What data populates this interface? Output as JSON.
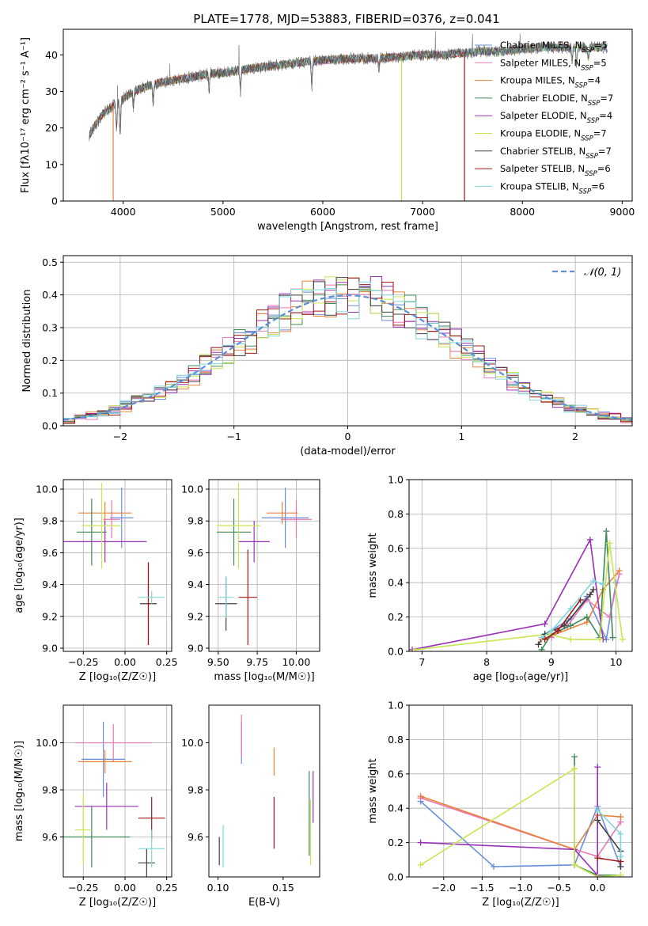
{
  "figure": {
    "title": "PLATE=1778, MJD=53883, FIBERID=0376, z=0.041"
  },
  "colors": {
    "chabrier_miles": "#6a8fd8",
    "salpeter_miles": "#e878b4",
    "kroupa_miles": "#e8823a",
    "chabrier_elodie": "#3f8a5a",
    "salpeter_elodie": "#9a30b8",
    "kroupa_elodie": "#c8e650",
    "chabrier_stelib": "#404040",
    "salpeter_stelib": "#a01818",
    "kroupa_stelib": "#80d8dc"
  },
  "chart_data": [
    {
      "id": "spectrum",
      "type": "line",
      "xlabel": "wavelength [Angstrom, rest frame]",
      "ylabel": "Flux [f",
      "ylabel_display": "Flux [fλ10⁻¹⁷ erg cm⁻² s⁻¹ A⁻¹]",
      "xlim": [
        3400,
        9100
      ],
      "ylim": [
        0,
        47
      ],
      "xticks": [
        4000,
        5000,
        6000,
        7000,
        8000,
        9000
      ],
      "yticks": [
        0,
        10,
        20,
        30,
        40
      ],
      "grid": false,
      "legend_placement": "right",
      "legend": [
        "Chabrier MILES, N_SSP=5",
        "Salpeter MILES, N_SSP=5",
        "Kroupa MILES, N_SSP=4",
        "Chabrier ELODIE, N_SSP=7",
        "Salpeter ELODIE, N_SSP=4",
        "Kroupa ELODIE, N_SSP=7",
        "Chabrier STELIB, N_SSP=7",
        "Salpeter STELIB, N_SSP=6",
        "Kroupa STELIB, N_SSP=6"
      ],
      "legend_display": [
        "Chabrier MILES, NSSP=5",
        "Salpeter MILES, NSSP=5",
        "Kroupa MILES, NSSP=4",
        "Chabrier ELODIE, NSSP=7",
        "Salpeter ELODIE, NSSP=4",
        "Kroupa ELODIE, NSSP=7",
        "Chabrier STELIB, NSSP=7",
        "Salpeter STELIB, NSSP=6",
        "Kroupa STELIB, NSSP=6"
      ],
      "continuum": [
        [
          3660,
          18
        ],
        [
          3700,
          20
        ],
        [
          3800,
          24
        ],
        [
          3900,
          26
        ],
        [
          4000,
          28
        ],
        [
          4100,
          30
        ],
        [
          4200,
          31
        ],
        [
          4300,
          32
        ],
        [
          4500,
          33
        ],
        [
          4700,
          34
        ],
        [
          4900,
          35
        ],
        [
          5000,
          35
        ],
        [
          5200,
          36
        ],
        [
          5500,
          37
        ],
        [
          5800,
          38
        ],
        [
          6000,
          38.5
        ],
        [
          6300,
          39
        ],
        [
          6500,
          39
        ],
        [
          6800,
          39.5
        ],
        [
          7000,
          40
        ],
        [
          7200,
          40
        ],
        [
          7400,
          40.5
        ],
        [
          7600,
          41
        ],
        [
          7800,
          41
        ],
        [
          8000,
          41.5
        ],
        [
          8200,
          42
        ],
        [
          8500,
          42
        ],
        [
          8800,
          42
        ]
      ],
      "absorption_lines": [
        [
          3934,
          6
        ],
        [
          3969,
          9
        ],
        [
          4102,
          4
        ],
        [
          4300,
          5
        ],
        [
          4861,
          4
        ],
        [
          5175,
          5
        ],
        [
          5890,
          6
        ],
        [
          6563,
          3
        ],
        [
          8498,
          3
        ],
        [
          8542,
          4
        ],
        [
          8662,
          3
        ]
      ],
      "drop_lines": [
        [
          3900,
          "#e8823a"
        ],
        [
          6790,
          "#c8e650"
        ],
        [
          7420,
          "#a01818"
        ]
      ],
      "red_end": 7420
    },
    {
      "id": "residuals",
      "type": "bar",
      "xlabel": "(data-model)/error",
      "ylabel": "Normed distribution",
      "xlim": [
        -2.5,
        2.5
      ],
      "ylim": [
        0,
        0.52
      ],
      "xticks": [
        -2,
        -1,
        0,
        1,
        2
      ],
      "yticks": [
        0.0,
        0.1,
        0.2,
        0.3,
        0.4,
        0.5
      ],
      "grid": true,
      "legend_placement": "top-right",
      "legend": [
        "N(0,1)"
      ],
      "legend_display": "𝒩(0, 1)",
      "bin_edges_start": -2.5,
      "bin_width": 0.1
    },
    {
      "id": "age_vs_Z",
      "type": "scatter",
      "xlabel": "Z [log10(Z/Z☉)]",
      "ylabel": "age  [log10(age/yr)]",
      "xlim": [
        -0.37,
        0.28
      ],
      "ylim": [
        8.98,
        10.06
      ],
      "xticks": [
        -0.25,
        0.0,
        0.25
      ],
      "yticks": [
        9.0,
        9.2,
        9.4,
        9.6,
        9.8,
        10.0
      ],
      "grid": true,
      "points": [
        {
          "c": "chabrier_miles",
          "x": -0.02,
          "y": 9.82,
          "ex": 0.07,
          "ey": 0.19
        },
        {
          "c": "salpeter_miles",
          "x": -0.08,
          "y": 9.81,
          "ex": 0.05,
          "ey": 0.12
        },
        {
          "c": "kroupa_miles",
          "x": -0.12,
          "y": 9.85,
          "ex": 0.16,
          "ey": 0.07
        },
        {
          "c": "chabrier_elodie",
          "x": -0.2,
          "y": 9.73,
          "ex": 0.09,
          "ey": 0.21
        },
        {
          "c": "salpeter_elodie",
          "x": -0.12,
          "y": 9.67,
          "ex": 0.25,
          "ey": 0.13
        },
        {
          "c": "kroupa_elodie",
          "x": -0.14,
          "y": 9.77,
          "ex": 0.12,
          "ey": 0.27
        },
        {
          "c": "chabrier_stelib",
          "x": 0.14,
          "y": 9.28,
          "ex": 0.05,
          "ey": 0.26
        },
        {
          "c": "salpeter_stelib",
          "x": 0.14,
          "y": 9.28,
          "ex": 0.01,
          "ey": 0.26
        },
        {
          "c": "kroupa_stelib",
          "x": 0.16,
          "y": 9.32,
          "ex": 0.08,
          "ey": 0.04
        }
      ]
    },
    {
      "id": "age_vs_mass",
      "type": "scatter",
      "xlabel": "mass [log10(M/M☉)]",
      "ylabel": "",
      "xlim": [
        9.44,
        10.15
      ],
      "ylim": [
        8.98,
        10.06
      ],
      "xticks": [
        9.5,
        9.75,
        10.0
      ],
      "yticks": [
        9.0,
        9.2,
        9.4,
        9.6,
        9.8,
        10.0
      ],
      "grid": true,
      "points": [
        {
          "c": "chabrier_miles",
          "x": 9.93,
          "y": 9.82,
          "ex": 0.15,
          "ey": 0.19
        },
        {
          "c": "salpeter_miles",
          "x": 10.0,
          "y": 9.81,
          "ex": 0.1,
          "ey": 0.12
        },
        {
          "c": "kroupa_miles",
          "x": 9.91,
          "y": 9.85,
          "ex": 0.1,
          "ey": 0.07
        },
        {
          "c": "chabrier_elodie",
          "x": 9.6,
          "y": 9.73,
          "ex": 0.11,
          "ey": 0.21
        },
        {
          "c": "salpeter_elodie",
          "x": 9.73,
          "y": 9.67,
          "ex": 0.1,
          "ey": 0.13
        },
        {
          "c": "kroupa_elodie",
          "x": 9.63,
          "y": 9.77,
          "ex": 0.14,
          "ey": 0.27
        },
        {
          "c": "chabrier_stelib",
          "x": 9.55,
          "y": 9.28,
          "ex": 0.07,
          "ey": 0.17
        },
        {
          "c": "salpeter_stelib",
          "x": 9.69,
          "y": 9.32,
          "ex": 0.06,
          "ey": 0.3
        },
        {
          "c": "kroupa_stelib",
          "x": 9.55,
          "y": 9.32,
          "ex": 0.05,
          "ey": 0.13
        }
      ]
    },
    {
      "id": "weight_vs_age",
      "type": "line",
      "xlabel": "age  [log10(age/yr)]",
      "ylabel": "mass weight",
      "xlim": [
        6.8,
        10.25
      ],
      "ylim": [
        0,
        1.0
      ],
      "xticks": [
        7,
        8,
        9,
        10
      ],
      "yticks": [
        0.0,
        0.2,
        0.4,
        0.6,
        0.8,
        1.0
      ],
      "grid": true,
      "series": [
        {
          "c": "chabrier_miles",
          "x": [
            8.9,
            9.3,
            9.55,
            9.85,
            10.0
          ],
          "y": [
            0.1,
            0.19,
            0.32,
            0.07,
            0.4
          ]
        },
        {
          "c": "salpeter_miles",
          "x": [
            9.0,
            9.25,
            9.55,
            9.9,
            10.05
          ],
          "y": [
            0.08,
            0.15,
            0.3,
            0.2,
            0.45
          ]
        },
        {
          "c": "kroupa_miles",
          "x": [
            8.85,
            9.55,
            9.8,
            10.05
          ],
          "y": [
            0.07,
            0.17,
            0.36,
            0.47
          ]
        },
        {
          "c": "chabrier_elodie",
          "x": [
            8.85,
            9.0,
            9.3,
            9.55,
            9.75,
            9.85,
            9.95
          ],
          "y": [
            0.01,
            0.1,
            0.15,
            0.2,
            0.08,
            0.7,
            0.08
          ]
        },
        {
          "c": "salpeter_elodie",
          "x": [
            6.85,
            8.9,
            9.6,
            9.8
          ],
          "y": [
            0.01,
            0.16,
            0.65,
            0.07
          ]
        },
        {
          "c": "kroupa_elodie",
          "x": [
            6.9,
            8.95,
            9.3,
            9.75,
            9.9,
            10.1
          ],
          "y": [
            0.01,
            0.1,
            0.07,
            0.07,
            0.63,
            0.07
          ]
        },
        {
          "c": "chabrier_stelib",
          "x": [
            8.8,
            8.9,
            9.2,
            9.6,
            9.65
          ],
          "y": [
            0.04,
            0.1,
            0.15,
            0.33,
            0.36
          ]
        },
        {
          "c": "salpeter_stelib",
          "x": [
            8.9,
            9.1,
            9.45
          ],
          "y": [
            0.07,
            0.12,
            0.3
          ]
        },
        {
          "c": "kroupa_stelib",
          "x": [
            8.85,
            9.0,
            9.3,
            9.65,
            9.8
          ],
          "y": [
            0.08,
            0.12,
            0.25,
            0.41,
            0.39
          ]
        }
      ]
    },
    {
      "id": "mass_vs_Z",
      "type": "scatter",
      "xlabel": "Z [log10(Z/Z☉)]",
      "ylabel": "mass [log10(M/M☉)]",
      "xlim": [
        -0.37,
        0.28
      ],
      "ylim": [
        9.43,
        10.16
      ],
      "xticks": [
        -0.25,
        0.0,
        0.25
      ],
      "yticks": [
        9.6,
        9.8,
        10.0
      ],
      "grid": true,
      "points": [
        {
          "c": "chabrier_miles",
          "x": -0.13,
          "y": 9.93,
          "ex": 0.13,
          "ey": 0.16
        },
        {
          "c": "salpeter_miles",
          "x": -0.07,
          "y": 10.0,
          "ex": 0.23,
          "ey": 0.08
        },
        {
          "c": "kroupa_miles",
          "x": -0.12,
          "y": 9.92,
          "ex": 0.16,
          "ey": 0.05
        },
        {
          "c": "chabrier_elodie",
          "x": -0.2,
          "y": 9.6,
          "ex": 0.23,
          "ey": 0.13
        },
        {
          "c": "salpeter_elodie",
          "x": -0.11,
          "y": 9.73,
          "ex": 0.19,
          "ey": 0.1
        },
        {
          "c": "kroupa_elodie",
          "x": -0.25,
          "y": 9.63,
          "ex": 0.05,
          "ey": 0.15
        },
        {
          "c": "chabrier_stelib",
          "x": 0.13,
          "y": 9.49,
          "ex": 0.05,
          "ey": 0.06
        },
        {
          "c": "salpeter_stelib",
          "x": 0.16,
          "y": 9.68,
          "ex": 0.08,
          "ey": 0.09
        },
        {
          "c": "kroupa_stelib",
          "x": 0.16,
          "y": 9.55,
          "ex": 0.08,
          "ey": 0.08
        }
      ]
    },
    {
      "id": "mass_vs_EBV",
      "type": "scatter",
      "xlabel": "E(B-V)",
      "ylabel": "",
      "xlim": [
        0.093,
        0.178
      ],
      "ylim": [
        9.43,
        10.16
      ],
      "xticks": [
        0.1,
        0.15
      ],
      "xtick_labels": [
        "0.10",
        "0.15"
      ],
      "yticks": [
        9.6,
        9.8,
        10.0
      ],
      "grid": false,
      "points": [
        {
          "c": "chabrier_miles",
          "x": 0.118,
          "y": 10.0,
          "ex": 0,
          "ey": 0.09
        },
        {
          "c": "salpeter_miles",
          "x": 0.118,
          "y": 10.03,
          "ex": 0,
          "ey": 0.09
        },
        {
          "c": "kroupa_miles",
          "x": 0.143,
          "y": 9.92,
          "ex": 0,
          "ey": 0.06
        },
        {
          "c": "chabrier_elodie",
          "x": 0.17,
          "y": 9.7,
          "ex": 0,
          "ey": 0.18
        },
        {
          "c": "salpeter_elodie",
          "x": 0.173,
          "y": 9.77,
          "ex": 0,
          "ey": 0.11
        },
        {
          "c": "kroupa_elodie",
          "x": 0.171,
          "y": 9.62,
          "ex": 0,
          "ey": 0.14
        },
        {
          "c": "chabrier_stelib",
          "x": 0.101,
          "y": 9.54,
          "ex": 0,
          "ey": 0.06
        },
        {
          "c": "salpeter_stelib",
          "x": 0.143,
          "y": 9.66,
          "ex": 0,
          "ey": 0.11
        },
        {
          "c": "kroupa_stelib",
          "x": 0.104,
          "y": 9.56,
          "ex": 0,
          "ey": 0.09
        }
      ]
    },
    {
      "id": "weight_vs_Z",
      "type": "line",
      "xlabel": "Z [log10(Z/Z☉)]",
      "ylabel": "mass weight",
      "xlim": [
        -2.45,
        0.45
      ],
      "ylim": [
        0,
        1.0
      ],
      "xticks": [
        -2.0,
        -1.5,
        -1.0,
        -0.5,
        0.0
      ],
      "yticks": [
        0.0,
        0.2,
        0.4,
        0.6,
        0.8,
        1.0
      ],
      "grid": true,
      "series": [
        {
          "c": "chabrier_miles",
          "x": [
            -2.3,
            -1.35,
            -0.3,
            0.0,
            0.3
          ],
          "y": [
            0.44,
            0.06,
            0.07,
            0.41,
            0.06
          ]
        },
        {
          "c": "salpeter_miles",
          "x": [
            -2.3,
            -0.3,
            0.0,
            0.3
          ],
          "y": [
            0.46,
            0.16,
            0.12,
            0.32
          ]
        },
        {
          "c": "kroupa_miles",
          "x": [
            -2.3,
            -0.3,
            0.0,
            0.3
          ],
          "y": [
            0.47,
            0.16,
            0.36,
            0.35
          ]
        },
        {
          "c": "chabrier_elodie",
          "x": [
            -0.3,
            -0.3,
            0.0,
            0.3
          ],
          "y": [
            0.7,
            0.07,
            0.01,
            0.01
          ]
        },
        {
          "c": "salpeter_elodie",
          "x": [
            -2.3,
            -0.3,
            0.0,
            0.0
          ],
          "y": [
            0.2,
            0.16,
            0.01,
            0.64
          ]
        },
        {
          "c": "kroupa_elodie",
          "x": [
            -2.3,
            -0.3,
            -0.3,
            0.0,
            0.3
          ],
          "y": [
            0.07,
            0.63,
            0.07,
            0.0,
            0.01
          ]
        },
        {
          "c": "chabrier_stelib",
          "x": [
            0.0,
            0.3,
            0.3
          ],
          "y": [
            0.33,
            0.15,
            0.06
          ]
        },
        {
          "c": "salpeter_stelib",
          "x": [
            0.0,
            0.3
          ],
          "y": [
            0.11,
            0.09
          ]
        },
        {
          "c": "kroupa_stelib",
          "x": [
            0.0,
            0.3,
            0.3
          ],
          "y": [
            0.39,
            0.25,
            0.12
          ]
        }
      ]
    }
  ]
}
